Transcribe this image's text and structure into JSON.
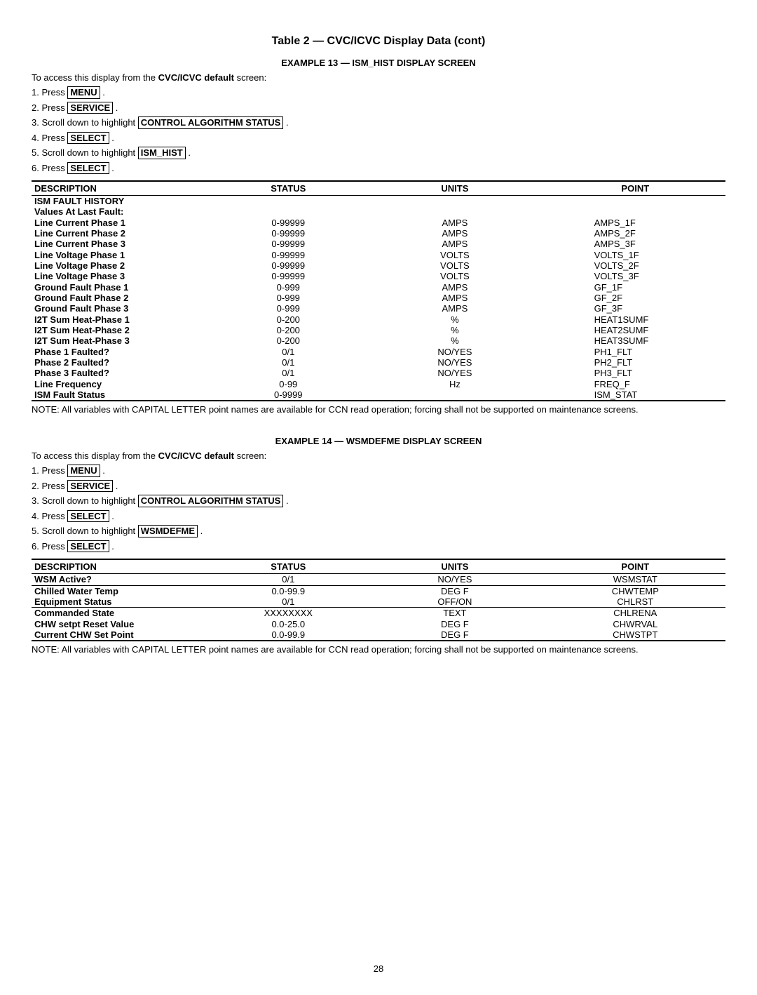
{
  "title": "Table 2 — CVC/ICVC Display Data (cont)",
  "pageNumber": "28",
  "example13": {
    "header": "EXAMPLE 13 — ISM_HIST DISPLAY SCREEN",
    "intro_prefix": "To access this display from the ",
    "intro_bold": "CVC/ICVC default",
    "intro_suffix": " screen:",
    "steps": [
      {
        "n": "1.",
        "pre": "Press ",
        "box": "MENU",
        "post": " ."
      },
      {
        "n": "2.",
        "pre": "Press ",
        "box": "SERVICE",
        "post": " ."
      },
      {
        "n": "3.",
        "pre": "Scroll down to highlight ",
        "box": "CONTROL ALGORITHM STATUS",
        "post": " ."
      },
      {
        "n": "4.",
        "pre": "Press ",
        "box": "SELECT",
        "post": " ."
      },
      {
        "n": "5.",
        "pre": "Scroll down to highlight ",
        "box": "ISM_HIST",
        "post": " ."
      },
      {
        "n": "6.",
        "pre": "Press ",
        "box": "SELECT",
        "post": " ."
      }
    ],
    "columns": [
      "DESCRIPTION",
      "STATUS",
      "UNITS",
      "POINT"
    ],
    "rows": [
      {
        "desc": "ISM FAULT HISTORY",
        "status": "",
        "units": "",
        "point": ""
      },
      {
        "desc": "Values At Last Fault:",
        "status": "",
        "units": "",
        "point": ""
      },
      {
        "desc": "Line Current Phase 1",
        "status": "0-99999",
        "units": "AMPS",
        "point": "AMPS_1F"
      },
      {
        "desc": "Line Current Phase 2",
        "status": "0-99999",
        "units": "AMPS",
        "point": "AMPS_2F"
      },
      {
        "desc": "Line Current Phase 3",
        "status": "0-99999",
        "units": "AMPS",
        "point": "AMPS_3F"
      },
      {
        "desc": "Line Voltage Phase 1",
        "status": "0-99999",
        "units": "VOLTS",
        "point": "VOLTS_1F"
      },
      {
        "desc": "Line Voltage Phase 2",
        "status": "0-99999",
        "units": "VOLTS",
        "point": "VOLTS_2F"
      },
      {
        "desc": "Line Voltage Phase 3",
        "status": "0-99999",
        "units": "VOLTS",
        "point": "VOLTS_3F"
      },
      {
        "desc": "Ground Fault Phase 1",
        "status": "0-999",
        "units": "AMPS",
        "point": "GF_1F"
      },
      {
        "desc": "Ground Fault Phase 2",
        "status": "0-999",
        "units": "AMPS",
        "point": "GF_2F"
      },
      {
        "desc": "Ground Fault Phase 3",
        "status": "0-999",
        "units": "AMPS",
        "point": "GF_3F"
      },
      {
        "desc": "I2T Sum Heat-Phase 1",
        "status": "0-200",
        "units": "%",
        "point": "HEAT1SUMF"
      },
      {
        "desc": "I2T Sum Heat-Phase 2",
        "status": "0-200",
        "units": "%",
        "point": "HEAT2SUMF"
      },
      {
        "desc": "I2T Sum Heat-Phase 3",
        "status": "0-200",
        "units": "%",
        "point": "HEAT3SUMF"
      },
      {
        "desc": "Phase 1 Faulted?",
        "status": "0/1",
        "units": "NO/YES",
        "point": "PH1_FLT"
      },
      {
        "desc": "Phase 2 Faulted?",
        "status": "0/1",
        "units": "NO/YES",
        "point": "PH2_FLT"
      },
      {
        "desc": "Phase 3 Faulted?",
        "status": "0/1",
        "units": "NO/YES",
        "point": "PH3_FLT"
      },
      {
        "desc": "Line Frequency",
        "status": "0-99",
        "units": "Hz",
        "point": "FREQ_F"
      },
      {
        "desc": "ISM Fault Status",
        "status": "0-9999",
        "units": "",
        "point": "ISM_STAT"
      }
    ],
    "note": "NOTE: All variables with CAPITAL LETTER point names are available for CCN read operation; forcing shall not be supported on maintenance screens."
  },
  "example14": {
    "header": "EXAMPLE 14 — WSMDEFME DISPLAY SCREEN",
    "intro_prefix": "To access this display from the ",
    "intro_bold": "CVC/ICVC default",
    "intro_suffix": " screen:",
    "steps": [
      {
        "n": "1.",
        "pre": "Press ",
        "box": "MENU",
        "post": " ."
      },
      {
        "n": "2.",
        "pre": "Press ",
        "box": "SERVICE",
        "post": " ."
      },
      {
        "n": "3.",
        "pre": "Scroll down to highlight ",
        "box": "CONTROL ALGORITHM STATUS",
        "post": " ."
      },
      {
        "n": "4.",
        "pre": "Press ",
        "box": "SELECT",
        "post": " ."
      },
      {
        "n": "5.",
        "pre": "Scroll down to highlight ",
        "box": "WSMDEFME",
        "post": " ."
      },
      {
        "n": "6.",
        "pre": "Press ",
        "box": "SELECT",
        "post": " ."
      }
    ],
    "columns": [
      "DESCRIPTION",
      "STATUS",
      "UNITS",
      "POINT"
    ],
    "rows": [
      {
        "desc": "WSM Active?",
        "status": "0/1",
        "units": "NO/YES",
        "point": "WSMSTAT",
        "sep": true
      },
      {
        "desc": "Chilled Water Temp",
        "status": "0.0-99.9",
        "units": "DEG F",
        "point": "CHWTEMP"
      },
      {
        "desc": "Equipment Status",
        "status": "0/1",
        "units": "OFF/ON",
        "point": "CHLRST",
        "sep": true
      },
      {
        "desc": "Commanded State",
        "status": "XXXXXXXX",
        "units": "TEXT",
        "point": "CHLRENA"
      },
      {
        "desc": "CHW setpt Reset Value",
        "status": "0.0-25.0",
        "units": "DEG F",
        "point": "CHWRVAL"
      },
      {
        "desc": "Current CHW Set Point",
        "status": "0.0-99.9",
        "units": "DEG F",
        "point": "CHWSTPT"
      }
    ],
    "note": "NOTE: All variables with CAPITAL LETTER point names are available for CCN read operation; forcing shall not be supported on maintenance screens."
  }
}
